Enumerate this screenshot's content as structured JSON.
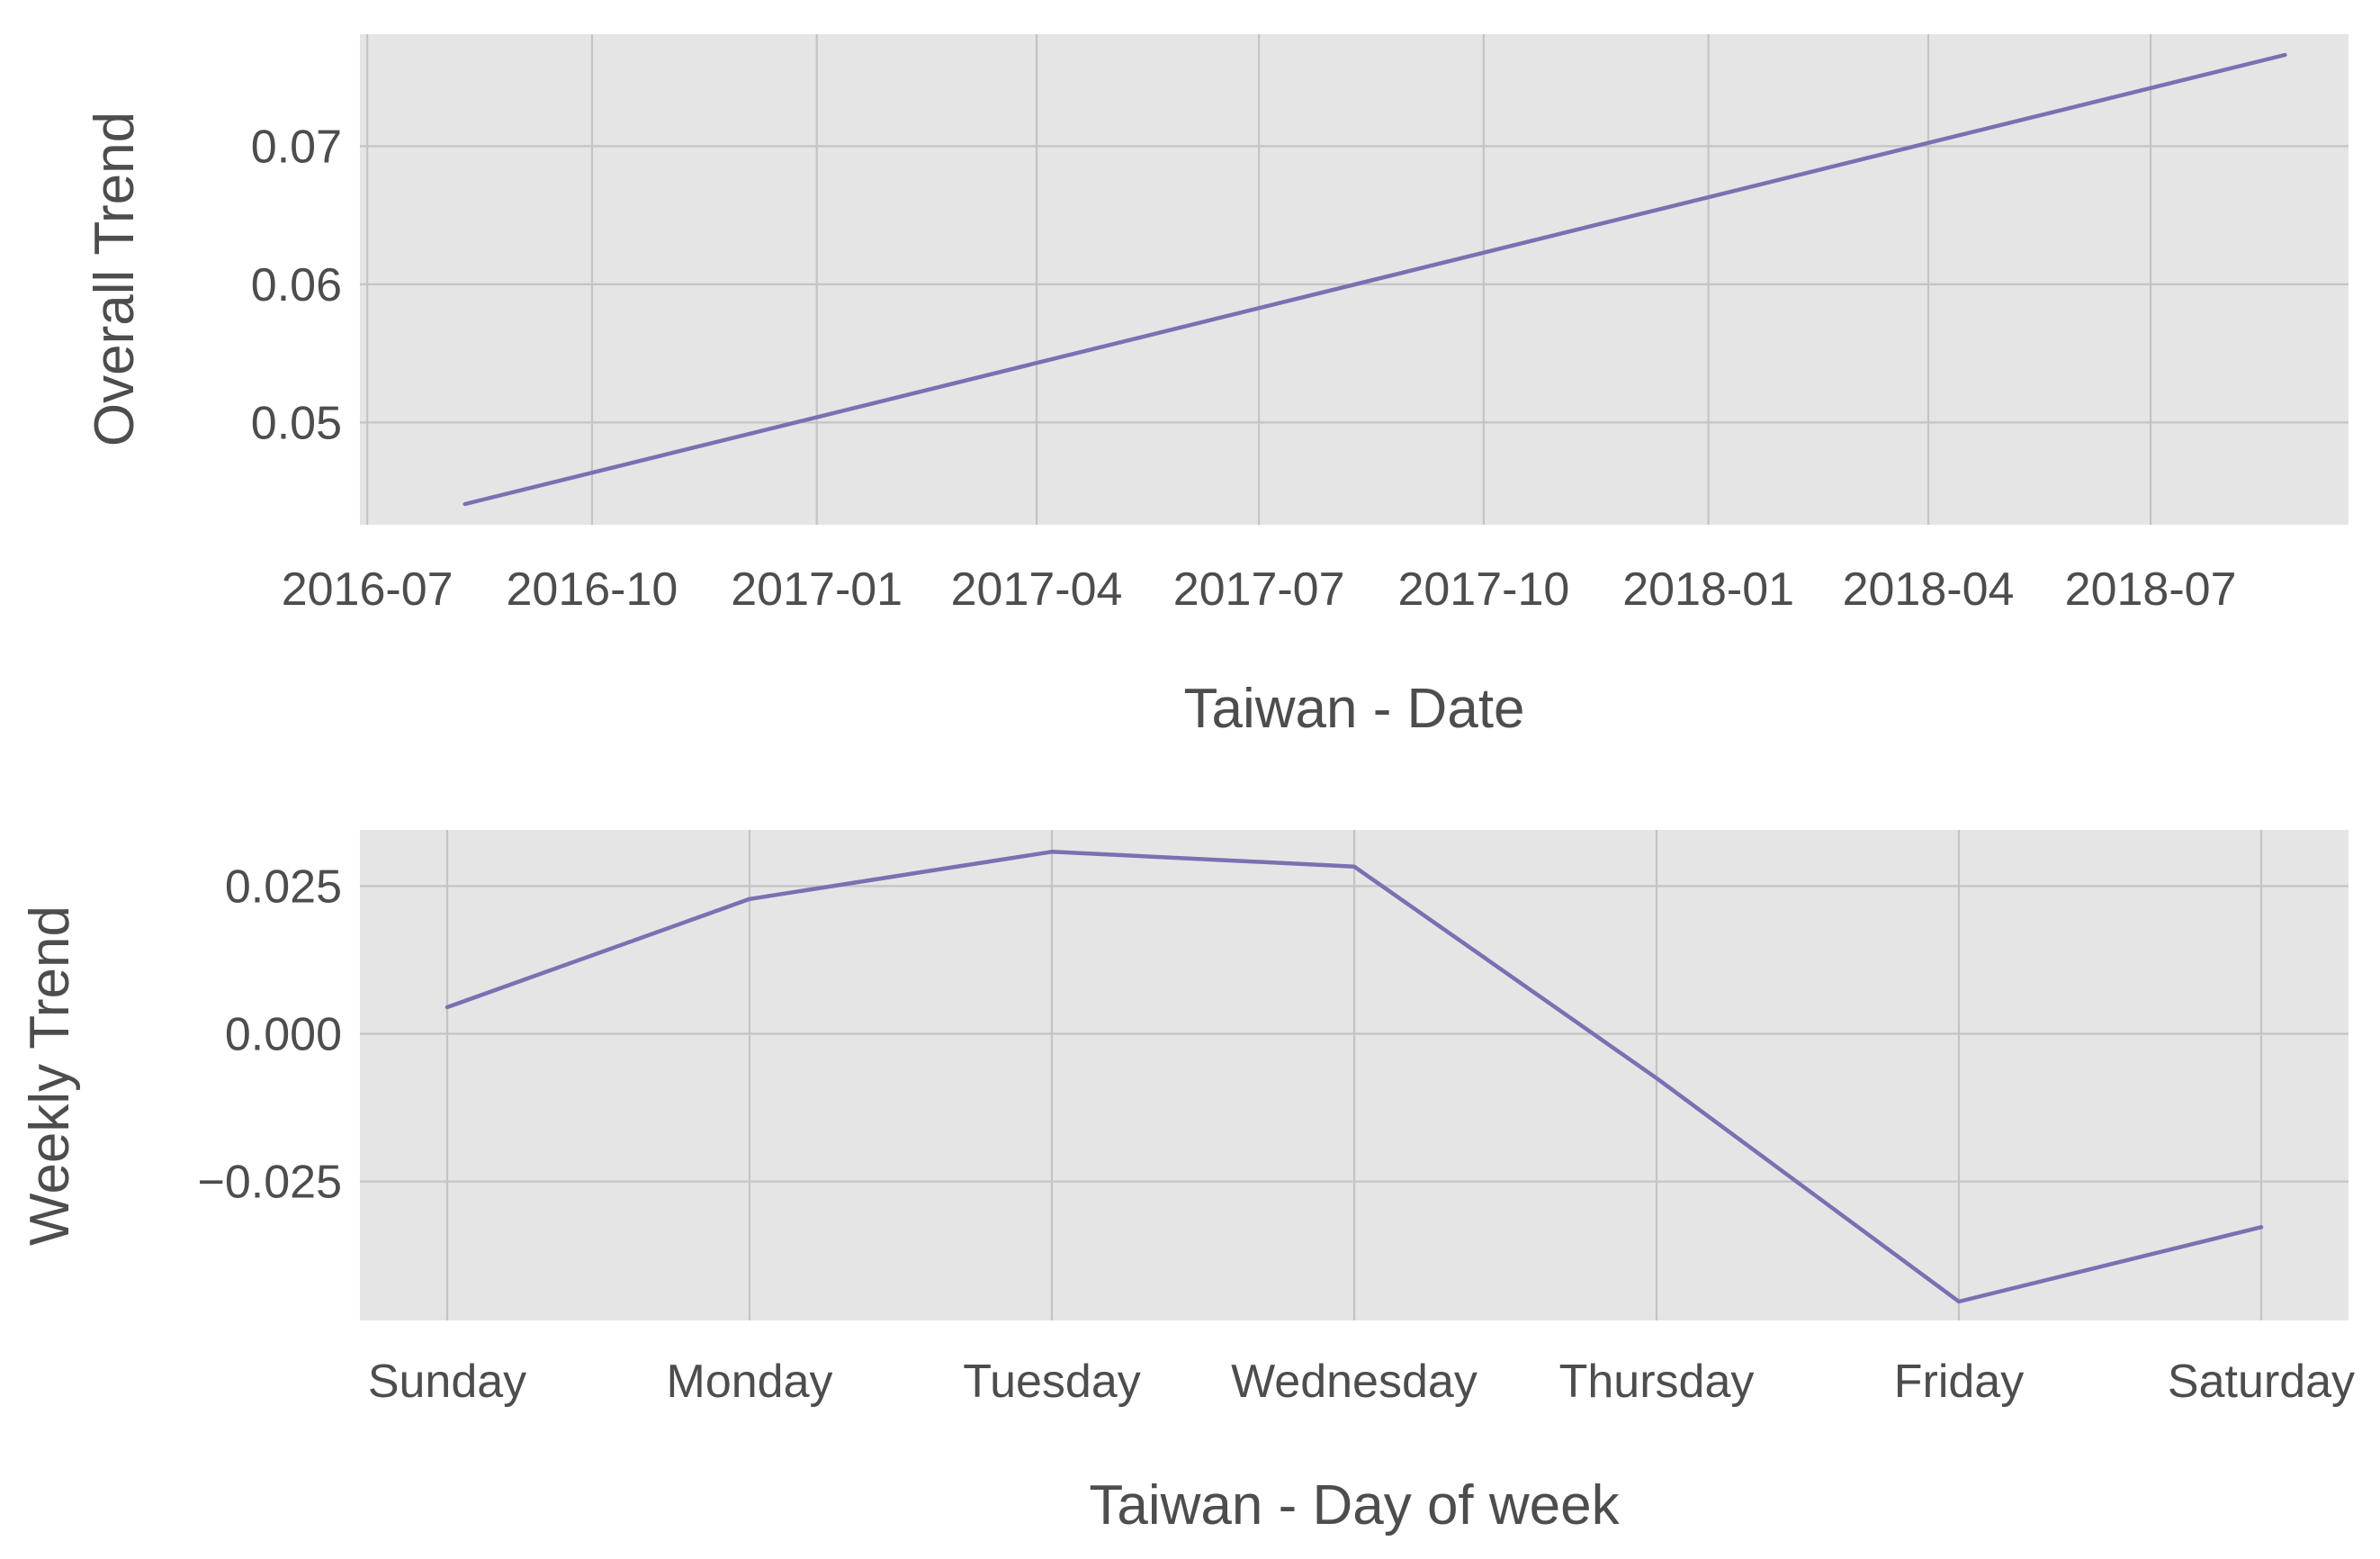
{
  "colors": {
    "plot_background": "#e5e5e5",
    "grid": "#c4c4c4",
    "text": "#4d4d4d",
    "series": "#7a70b2"
  },
  "chart_data": [
    {
      "type": "line",
      "xlabel": "Taiwan - Date",
      "ylabel": "Overall Trend",
      "x_axis": "date",
      "x_ticks": [
        "2016-07",
        "2016-10",
        "2017-01",
        "2017-04",
        "2017-07",
        "2017-10",
        "2018-01",
        "2018-04",
        "2018-07"
      ],
      "y_ticks": [
        "0.05",
        "0.06",
        "0.07"
      ],
      "xlim": [
        "2016-06-28",
        "2018-09-20"
      ],
      "ylim": [
        0.0426,
        0.0781
      ],
      "grid": true,
      "series": [
        {
          "x": [
            "2016-08-10",
            "2018-08-25"
          ],
          "values": [
            0.0441,
            0.0766
          ]
        }
      ]
    },
    {
      "type": "line",
      "xlabel": "Taiwan - Day of week",
      "ylabel": "Weekly Trend",
      "categories": [
        "Sunday",
        "Monday",
        "Tuesday",
        "Wednesday",
        "Thursday",
        "Friday",
        "Saturday"
      ],
      "y_ticks": [
        "0.025",
        "0.000",
        "−0.025"
      ],
      "ylim": [
        -0.0485,
        0.0345
      ],
      "grid": true,
      "series": [
        {
          "values": [
            0.0045,
            0.0228,
            0.0308,
            0.0283,
            -0.0075,
            -0.0453,
            -0.0327
          ]
        }
      ]
    }
  ]
}
